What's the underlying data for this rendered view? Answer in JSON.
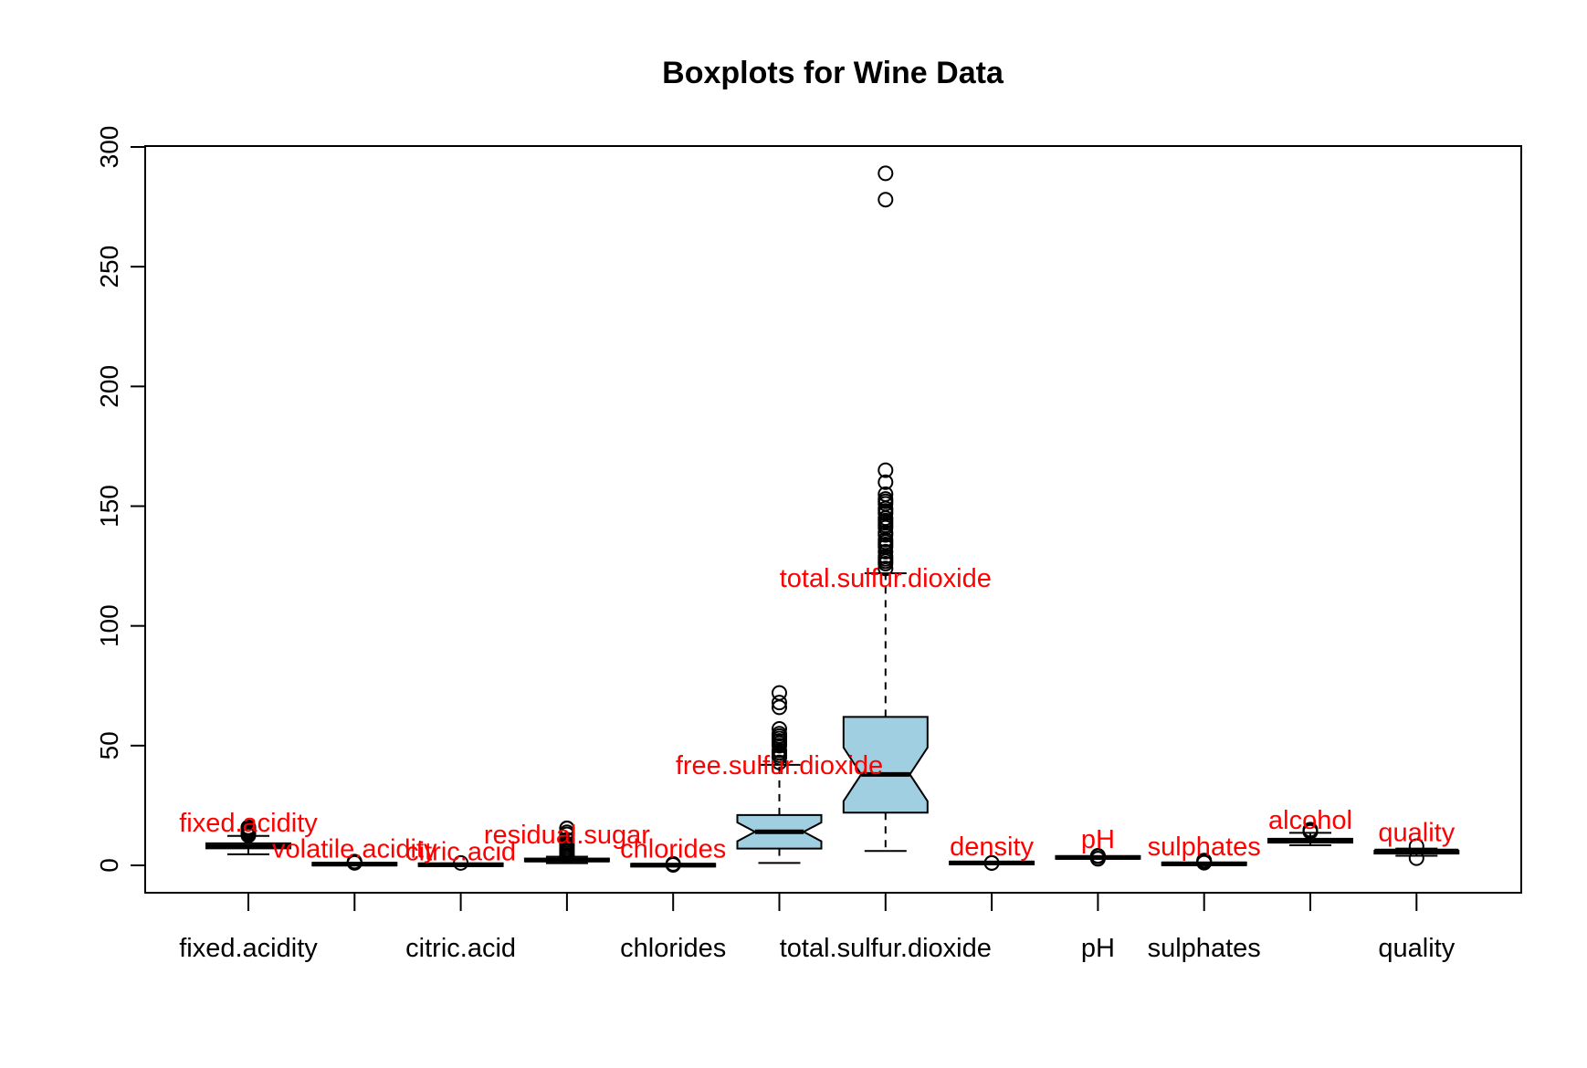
{
  "chart_data": {
    "type": "boxplot",
    "title": "Boxplots for Wine Data",
    "xlabel": "",
    "ylabel": "",
    "ylim": [
      -12,
      300
    ],
    "yticks": [
      0,
      50,
      100,
      150,
      200,
      250,
      300
    ],
    "xtick_labels_shown": [
      "fixed.acidity",
      "",
      "citric.acid",
      "",
      "chlorides",
      "",
      "total.sulfur.dioxide",
      "",
      "pH",
      "sulphates",
      "",
      "quality"
    ],
    "colors": {
      "box_fill": "#9fcfe0",
      "label": "#ff0000",
      "axis": "#000000"
    },
    "series": [
      {
        "name": "fixed.acidity",
        "q1": 7.1,
        "median": 7.9,
        "q3": 9.2,
        "whisker_low": 4.6,
        "whisker_high": 12.3,
        "notch": false,
        "filled": false,
        "outliers": [
          12.5,
          12.8,
          13.0,
          13.3,
          13.5,
          13.8,
          14.0,
          14.3,
          15.0,
          15.6,
          15.9
        ],
        "label_y": 18
      },
      {
        "name": "volatile.acidity",
        "q1": 0.39,
        "median": 0.52,
        "q3": 0.64,
        "whisker_low": 0.12,
        "whisker_high": 1.01,
        "notch": false,
        "filled": false,
        "outliers": [
          1.04,
          1.09,
          1.13,
          1.18,
          1.24,
          1.33,
          1.58
        ],
        "label_y": 7
      },
      {
        "name": "citric.acid",
        "q1": 0.09,
        "median": 0.26,
        "q3": 0.42,
        "whisker_low": 0.0,
        "whisker_high": 0.79,
        "notch": false,
        "filled": false,
        "outliers": [
          1.0
        ],
        "label_y": 6
      },
      {
        "name": "residual.sugar",
        "q1": 1.9,
        "median": 2.2,
        "q3": 2.6,
        "whisker_low": 0.9,
        "whisker_high": 3.6,
        "notch": false,
        "filled": false,
        "outliers": [
          3.8,
          4.3,
          5.1,
          5.9,
          6.7,
          7.5,
          8.3,
          9.0,
          10.7,
          12.9,
          13.8,
          15.4,
          15.5
        ],
        "label_y": 13
      },
      {
        "name": "chlorides",
        "q1": 0.07,
        "median": 0.079,
        "q3": 0.09,
        "whisker_low": 0.012,
        "whisker_high": 0.12,
        "notch": false,
        "filled": false,
        "outliers": [
          0.2,
          0.4,
          0.6
        ],
        "label_y": 7
      },
      {
        "name": "free.sulfur.dioxide",
        "q1": 7,
        "median": 14,
        "q3": 21,
        "whisker_low": 1,
        "whisker_high": 42,
        "notch": true,
        "filled": true,
        "outliers": [
          43,
          45,
          46,
          47,
          48,
          50,
          51,
          52,
          53,
          54,
          55,
          57,
          66,
          68,
          72
        ],
        "label_y": 42
      },
      {
        "name": "total.sulfur.dioxide",
        "q1": 22,
        "median": 38,
        "q3": 62,
        "whisker_low": 6,
        "whisker_high": 122,
        "notch": true,
        "filled": true,
        "outliers": [
          124,
          126,
          127,
          128,
          129,
          131,
          133,
          134,
          135,
          136,
          138,
          139,
          141,
          142,
          143,
          144,
          145,
          147,
          148,
          149,
          151,
          152,
          153,
          155,
          160,
          165,
          278,
          289
        ],
        "label_y": 120
      },
      {
        "name": "density",
        "q1": 0.9956,
        "median": 0.9968,
        "q3": 0.9978,
        "whisker_low": 0.9922,
        "whisker_high": 1.001,
        "notch": false,
        "filled": false,
        "outliers": [
          0.99,
          1.003
        ],
        "label_y": 8
      },
      {
        "name": "pH",
        "q1": 3.21,
        "median": 3.31,
        "q3": 3.4,
        "whisker_low": 2.94,
        "whisker_high": 3.68,
        "notch": false,
        "filled": false,
        "outliers": [
          2.74,
          2.86,
          3.78,
          3.9,
          4.01
        ],
        "label_y": 11
      },
      {
        "name": "sulphates",
        "q1": 0.55,
        "median": 0.62,
        "q3": 0.73,
        "whisker_low": 0.33,
        "whisker_high": 1.0,
        "notch": false,
        "filled": false,
        "outliers": [
          1.1,
          1.3,
          1.6,
          1.95,
          2.0
        ],
        "label_y": 8
      },
      {
        "name": "alcohol",
        "q1": 9.5,
        "median": 10.2,
        "q3": 11.1,
        "whisker_low": 8.4,
        "whisker_high": 13.6,
        "notch": false,
        "filled": false,
        "outliers": [
          14.0,
          14.3,
          14.9
        ],
        "label_y": 19
      },
      {
        "name": "quality",
        "q1": 5,
        "median": 6,
        "q3": 6,
        "whisker_low": 4,
        "whisker_high": 7,
        "notch": false,
        "filled": false,
        "outliers": [
          3,
          8
        ],
        "label_y": 14
      }
    ]
  }
}
